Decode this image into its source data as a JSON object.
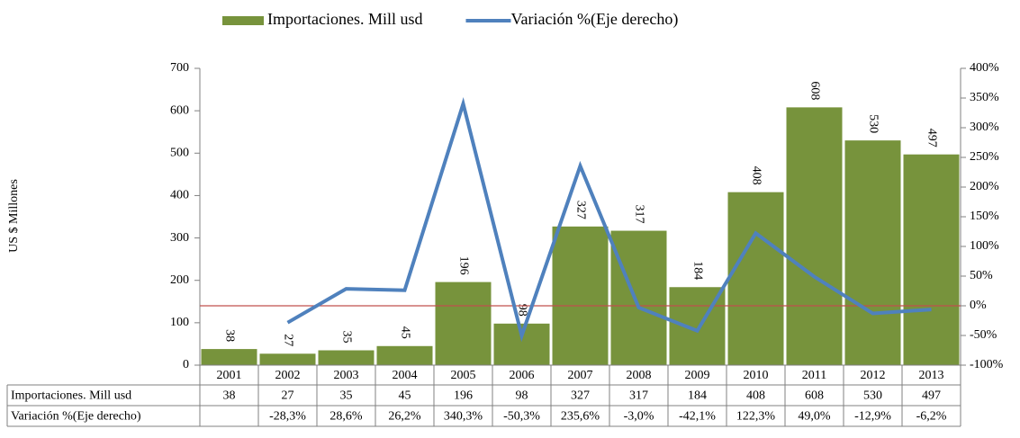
{
  "chart_data": {
    "type": "bar",
    "y_label": "US $ Millones",
    "categories": [
      "2001",
      "2002",
      "2003",
      "2004",
      "2005",
      "2006",
      "2007",
      "2008",
      "2009",
      "2010",
      "2011",
      "2012",
      "2013"
    ],
    "series": [
      {
        "name": "Importaciones. Mill usd",
        "type": "bar",
        "color": "#77933c",
        "values": [
          38,
          27,
          35,
          45,
          196,
          98,
          327,
          317,
          184,
          408,
          608,
          530,
          497
        ]
      },
      {
        "name": "Variación %(Eje derecho)",
        "type": "line",
        "color": "#4f81bd",
        "axis": "y2",
        "values": [
          null,
          -28.3,
          28.6,
          26.2,
          340.3,
          -50.3,
          235.6,
          -3.0,
          -42.1,
          122.3,
          49.0,
          -12.9,
          -6.2
        ],
        "value_labels": [
          null,
          "-28,3%",
          "28,6%",
          "26,2%",
          "340,3%",
          "-50,3%",
          "235,6%",
          "-3,0%",
          "-42,1%",
          "122,3%",
          "49,0%",
          "-12,9%",
          "-6,2%"
        ]
      }
    ],
    "ylim": [
      0,
      700
    ],
    "yticks": [
      0,
      100,
      200,
      300,
      400,
      500,
      600,
      700
    ],
    "y2lim": [
      -100,
      400
    ],
    "y2ticks": [
      {
        "value": -100,
        "label": "-100%"
      },
      {
        "value": -50,
        "label": "-50%"
      },
      {
        "value": 0,
        "label": "0%"
      },
      {
        "value": 50,
        "label": "50%"
      },
      {
        "value": 100,
        "label": "100%"
      },
      {
        "value": 150,
        "label": "150%"
      },
      {
        "value": 200,
        "label": "200%"
      },
      {
        "value": 250,
        "label": "250%"
      },
      {
        "value": 300,
        "label": "300%"
      },
      {
        "value": 350,
        "label": "350%"
      },
      {
        "value": 400,
        "label": "400%"
      }
    ],
    "zero_line_color": "#c0504d",
    "legend": "top"
  }
}
